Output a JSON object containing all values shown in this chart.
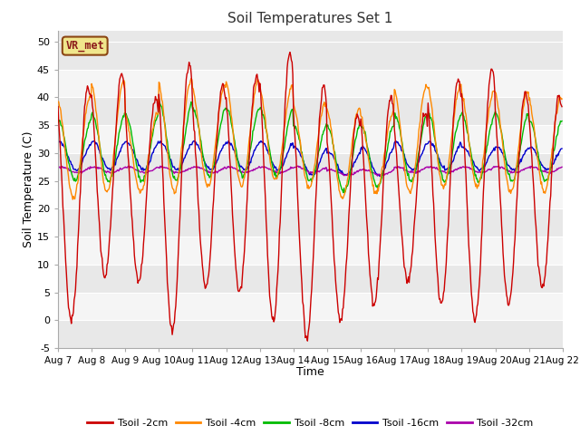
{
  "title": "Soil Temperatures Set 1",
  "xlabel": "Time",
  "ylabel": "Soil Temperature (C)",
  "ylim": [
    -5,
    52
  ],
  "yticks": [
    -5,
    0,
    5,
    10,
    15,
    20,
    25,
    30,
    35,
    40,
    45,
    50
  ],
  "bg_color": "#ffffff",
  "plot_bg_color": "#e8e8e8",
  "band_colors": [
    "#e8e8e8",
    "#f5f5f5"
  ],
  "grid_color": "#ffffff",
  "start_day": 7,
  "end_day": 22,
  "n_days": 15,
  "legend_label": "VR_met",
  "series_colors": {
    "Tsoil -2cm": "#cc0000",
    "Tsoil -4cm": "#ff8800",
    "Tsoil -8cm": "#00bb00",
    "Tsoil -16cm": "#0000cc",
    "Tsoil -32cm": "#aa00aa"
  },
  "legend_entries": [
    "Tsoil -2cm",
    "Tsoil -4cm",
    "Tsoil -8cm",
    "Tsoil -16cm",
    "Tsoil -32cm"
  ],
  "peaks_2cm": [
    42,
    44,
    40,
    46,
    42,
    44,
    48,
    42,
    37,
    40,
    37,
    43,
    45,
    41,
    40
  ],
  "troughs_2cm": [
    0,
    8,
    7,
    -2,
    6,
    5,
    0,
    -3,
    0,
    3,
    7,
    3,
    0,
    3,
    6
  ],
  "peaks_4cm": [
    40,
    43,
    37,
    43,
    42,
    43,
    42,
    39,
    38,
    37,
    42,
    42,
    41,
    41,
    40
  ],
  "troughs_4cm": [
    22,
    23,
    23,
    23,
    24,
    24,
    25,
    24,
    22,
    23,
    23,
    24,
    24,
    23,
    23
  ],
  "peaks_8cm": [
    36,
    37,
    37,
    39,
    38,
    38,
    38,
    35,
    35,
    35,
    37,
    37,
    37,
    37,
    36
  ],
  "troughs_8cm": [
    25,
    25,
    25,
    25,
    26,
    26,
    26,
    25,
    23,
    24,
    25,
    25,
    25,
    25,
    25
  ],
  "peaks_16cm": [
    32,
    32,
    32,
    32,
    32,
    32,
    32,
    31,
    30,
    31,
    32,
    32,
    31,
    31,
    31
  ],
  "troughs_16cm": [
    27,
    27,
    27,
    27,
    27,
    27,
    27,
    26,
    26,
    26,
    27,
    27,
    27,
    27,
    27
  ],
  "peaks_32cm": [
    27.5,
    27.5,
    27.5,
    27.5,
    27.5,
    27.5,
    27.5,
    27.5,
    27,
    27,
    27.5,
    27.5,
    27.5,
    27.5,
    27.5
  ],
  "troughs_32cm": [
    26.5,
    26.5,
    26.5,
    26.5,
    26.5,
    26.5,
    26.5,
    26.5,
    26,
    26,
    26.5,
    26.5,
    26.5,
    26.5,
    26.5
  ]
}
